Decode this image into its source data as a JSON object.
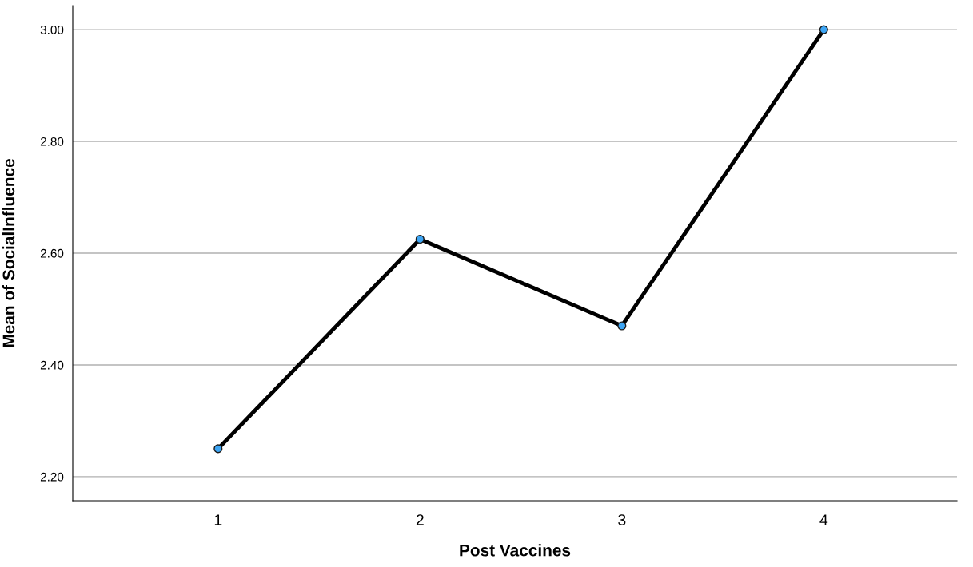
{
  "chart_data": {
    "type": "line",
    "xlabel": "Post Vaccines",
    "ylabel": "Mean of SocialInfluence",
    "categories": [
      "1",
      "2",
      "3",
      "4"
    ],
    "series": [
      {
        "color": "#000000",
        "values": [
          2.25,
          2.625,
          2.47,
          3.0
        ]
      }
    ],
    "marker": "circle",
    "line_style": "solid",
    "grid": "y",
    "ylim": [
      2.157,
      3.043
    ],
    "yticks": [
      {
        "value": 2.2,
        "label": "2.20"
      },
      {
        "value": 2.4,
        "label": "2.40"
      },
      {
        "value": 2.6,
        "label": "2.60"
      },
      {
        "value": 2.8,
        "label": "2.80"
      },
      {
        "value": 3.0,
        "label": "3.00"
      }
    ]
  }
}
